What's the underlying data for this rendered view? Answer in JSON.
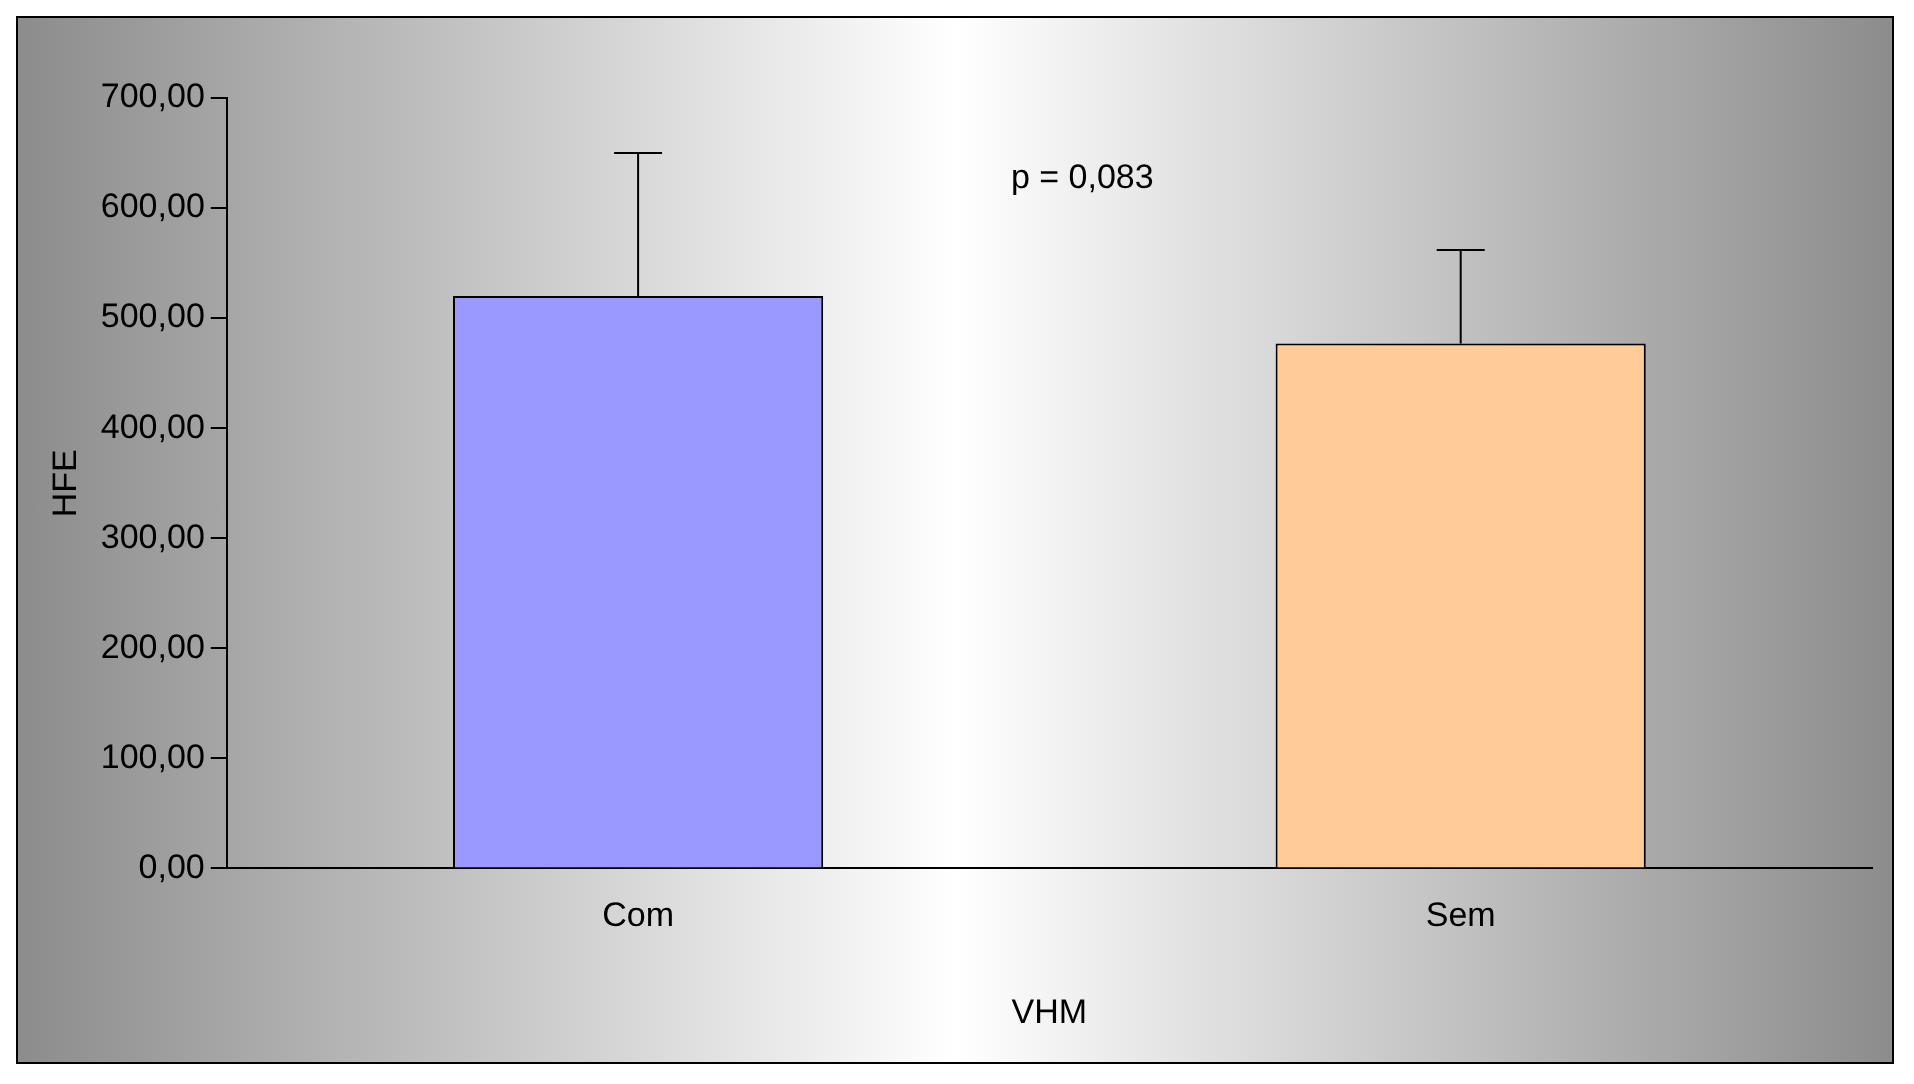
{
  "chart_data": {
    "type": "bar",
    "xlabel": "VHM",
    "ylabel": "HFE",
    "categories": [
      "Com",
      "Sem"
    ],
    "values": [
      520,
      477
    ],
    "colors": [
      "#9999ff",
      "#ffcc99"
    ],
    "errors": [
      [
        520,
        650
      ],
      [
        477,
        562
      ]
    ],
    "ylim": [
      0,
      700
    ],
    "yticks": [
      {
        "value": 0,
        "label": "0,00"
      },
      {
        "value": 100,
        "label": "100,00"
      },
      {
        "value": 200,
        "label": "200,00"
      },
      {
        "value": 300,
        "label": "300,00"
      },
      {
        "value": 400,
        "label": "400,00"
      },
      {
        "value": 500,
        "label": "500,00"
      },
      {
        "value": 600,
        "label": "600,00"
      },
      {
        "value": 700,
        "label": "700,00"
      }
    ],
    "annotations": [
      "p = 0,083"
    ],
    "grid": false,
    "legend": false
  }
}
